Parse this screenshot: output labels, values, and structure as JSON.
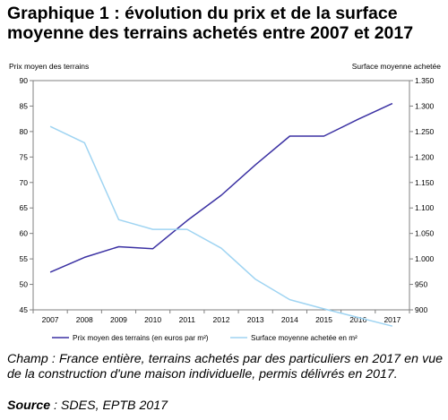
{
  "title": "Graphique 1 : évolution du prix et de la surface moyenne des terrains achetés entre 2007 et 2017",
  "champ": "Champ : France entière, terrains achetés par des particuliers en 2017 en vue de la construction d'une maison individuelle, permis délivrés en 2017.",
  "source_label": "Source",
  "source_text": " : SDES, EPTB 2017",
  "chart_data": {
    "type": "line",
    "x": [
      "2007",
      "2008",
      "2009",
      "2010",
      "2011",
      "2012",
      "2013",
      "2014",
      "2015",
      "2016",
      "2017"
    ],
    "y_left_label": "Prix moyen des terrains",
    "y_right_label": "Surface moyenne achetée",
    "y_left_lim": [
      45,
      90
    ],
    "y_left_ticks": [
      "45",
      "50",
      "55",
      "60",
      "65",
      "70",
      "75",
      "80",
      "85",
      "90"
    ],
    "y_right_lim": [
      900,
      1350
    ],
    "y_right_ticks": [
      "900",
      "950",
      "1.000",
      "1.050",
      "1.100",
      "1.150",
      "1.200",
      "1.250",
      "1.300",
      "1.350"
    ],
    "grid": false,
    "legend_position": "bottom",
    "series": [
      {
        "name": "Prix moyen des terrains (en euros par m²)",
        "axis": "left",
        "color": "#3b31a3",
        "values": [
          52.4,
          55.3,
          57.4,
          57.0,
          62.5,
          67.5,
          73.5,
          79.1,
          79.1,
          82.4,
          85.5
        ]
      },
      {
        "name": "Surface moyenne achetée en m²",
        "axis": "right",
        "color": "#9fd4f2",
        "values": [
          1260,
          1228,
          1077,
          1058,
          1058,
          1021,
          960,
          920,
          902,
          885,
          868
        ]
      }
    ]
  }
}
